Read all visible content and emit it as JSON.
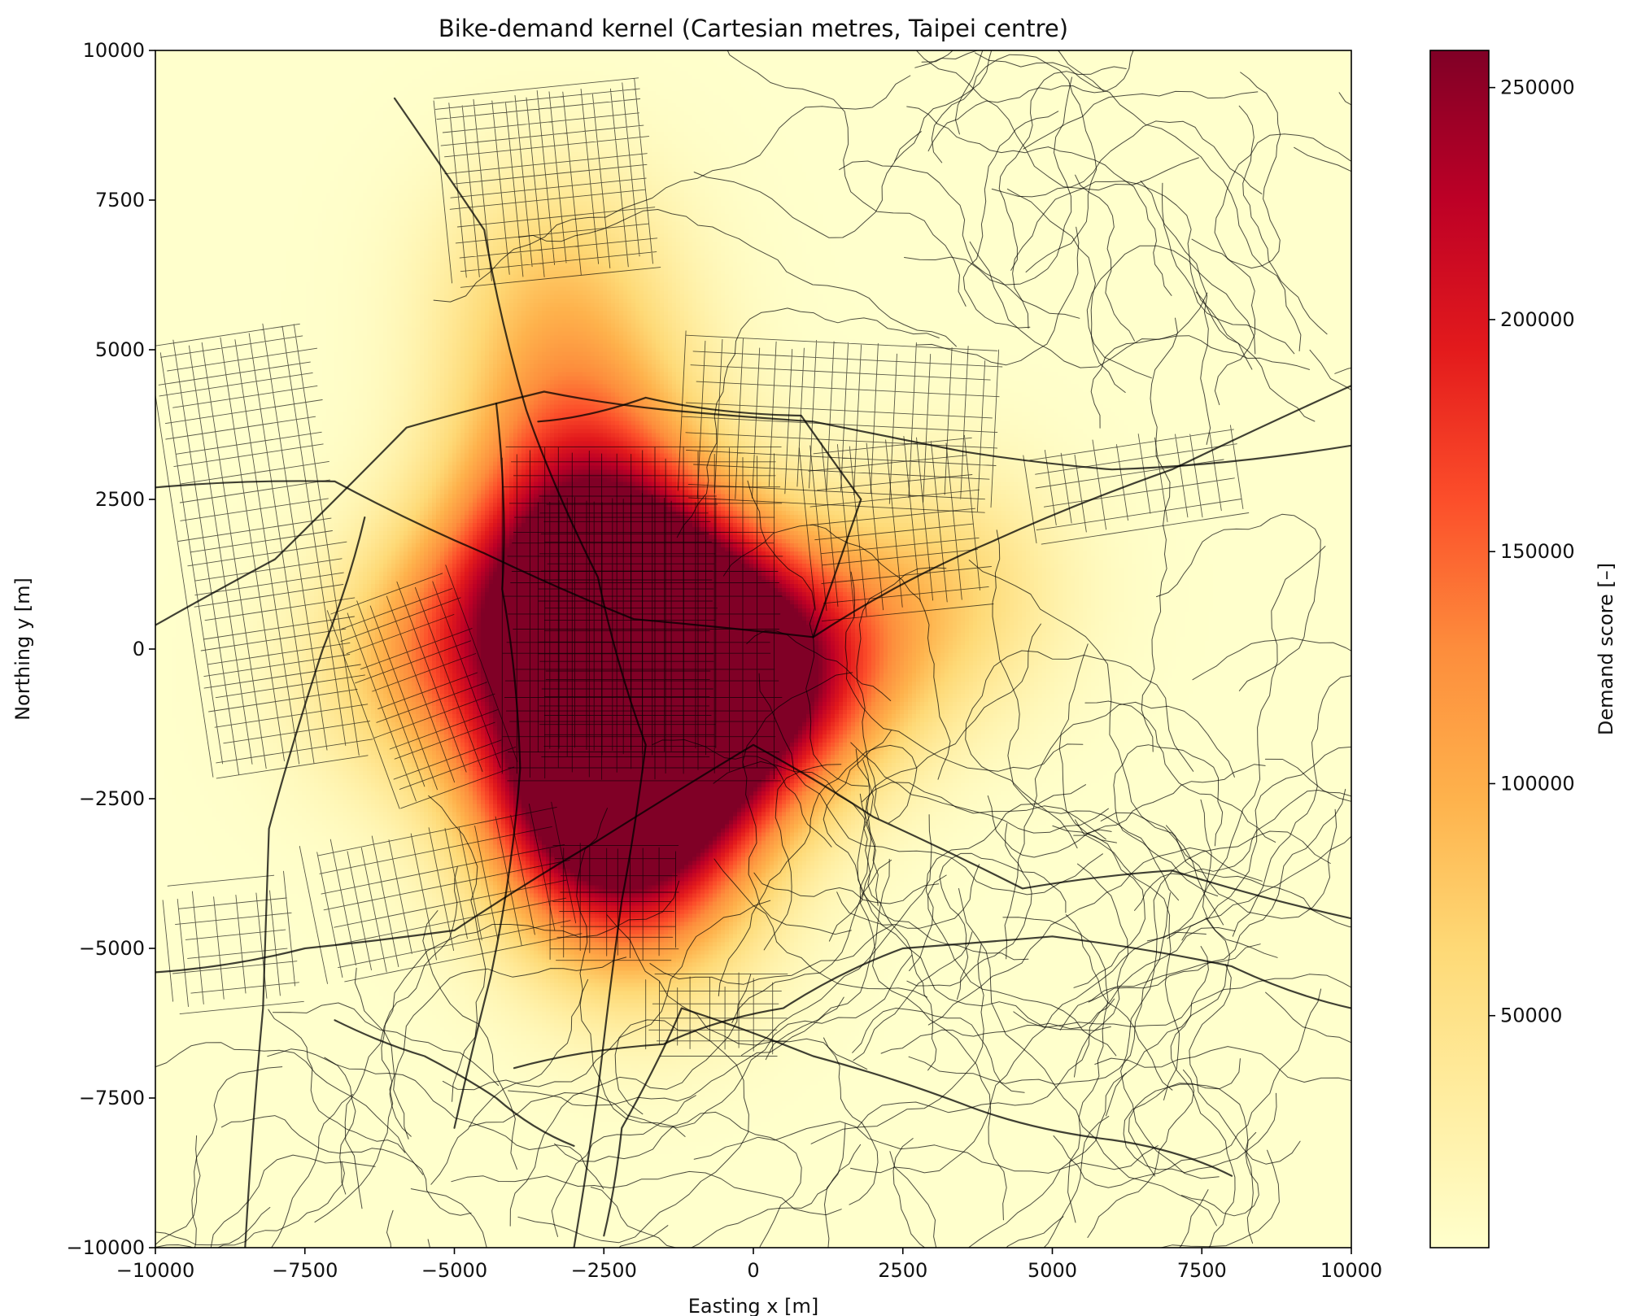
{
  "chart_data": {
    "type": "heatmap",
    "title": "Bike-demand kernel (Cartesian metres, Taipei centre)",
    "xlabel": "Easting x [m]",
    "ylabel": "Northing y [m]",
    "xlim": [
      -10000,
      10000
    ],
    "ylim": [
      -10000,
      10000
    ],
    "xticks": [
      -10000,
      -7500,
      -5000,
      -2500,
      0,
      2500,
      5000,
      7500,
      10000
    ],
    "yticks": [
      -10000,
      -7500,
      -5000,
      -2500,
      0,
      2500,
      5000,
      7500,
      10000
    ],
    "xtick_labels": [
      "−10000",
      "−7500",
      "−5000",
      "−2500",
      "0",
      "2500",
      "5000",
      "7500",
      "10000"
    ],
    "ytick_labels": [
      "−10000",
      "−7500",
      "−5000",
      "−2500",
      "0",
      "2500",
      "5000",
      "7500",
      "10000"
    ],
    "grid": false,
    "colorbar": {
      "label": "Demand score [–]",
      "range": [
        0,
        258000
      ],
      "ticks": [
        50000,
        100000,
        150000,
        200000,
        250000
      ],
      "tick_labels": [
        "50000",
        "100000",
        "150000",
        "200000",
        "250000"
      ],
      "colormap": "YlOrRd",
      "stops": [
        "#ffffcc",
        "#ffeda0",
        "#fed976",
        "#feb24c",
        "#fd8d3c",
        "#fc4e2a",
        "#e31a1c",
        "#bd0026",
        "#800026"
      ]
    },
    "kernel_hotspots": [
      {
        "x": -2100,
        "y": -1500,
        "peak": 255000
      },
      {
        "x": -1600,
        "y": 500,
        "peak": 215000
      },
      {
        "x": -2700,
        "y": 1600,
        "peak": 185000
      },
      {
        "x": -2500,
        "y": -2600,
        "peak": 195000
      },
      {
        "x": -800,
        "y": -900,
        "peak": 165000
      },
      {
        "x": 700,
        "y": -200,
        "peak": 145000
      },
      {
        "x": -4300,
        "y": 300,
        "peak": 125000
      },
      {
        "x": -3000,
        "y": 3800,
        "peak": 95000
      },
      {
        "x": -3300,
        "y": 6200,
        "peak": 60000
      },
      {
        "x": -1900,
        "y": -4200,
        "peak": 85000
      },
      {
        "x": 3200,
        "y": 1000,
        "peak": 60000
      },
      {
        "x": -5800,
        "y": -500,
        "peak": 45000
      }
    ],
    "background": "road network of Taipei"
  }
}
